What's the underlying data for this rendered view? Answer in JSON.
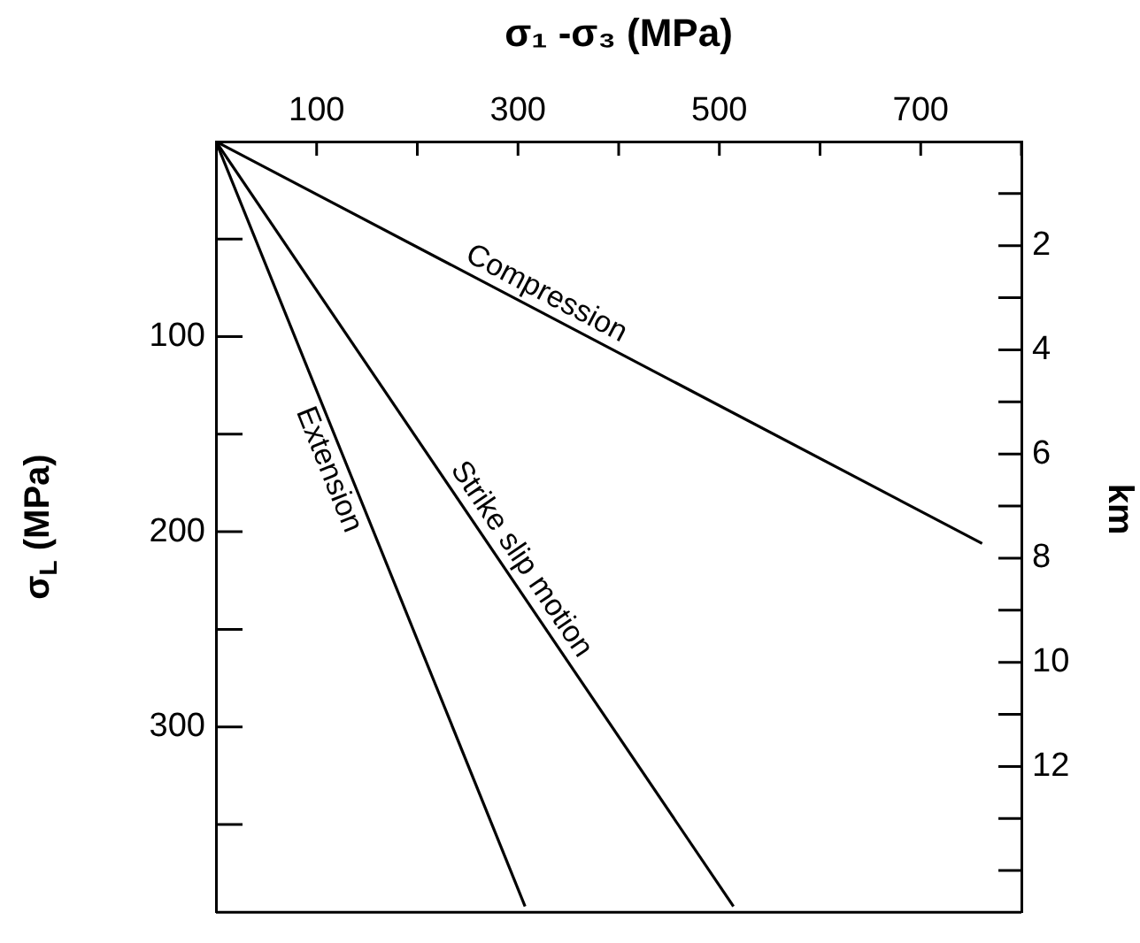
{
  "chart_data": {
    "type": "line",
    "xlabel": "σ₁ -σ₃ (MPa)",
    "ylabel": "σ$_{L}$ (MPa)",
    "y2label": "km",
    "xlim": [
      0,
      800
    ],
    "xticks": [
      100,
      {
        "value": 200,
        "label": null
      },
      300,
      {
        "value": 400,
        "label": null
      },
      500,
      {
        "value": 600,
        "label": null
      },
      700,
      {
        "value": 800,
        "label": null
      }
    ],
    "ylim": [
      395,
      0
    ],
    "yticks": [
      {
        "value": 50,
        "label": null
      },
      100,
      {
        "value": 150,
        "label": null
      },
      200,
      {
        "value": 250,
        "label": null
      },
      300,
      {
        "value": 350,
        "label": null
      }
    ],
    "y2lim": [
      14.8,
      0
    ],
    "y2ticks": [
      {
        "value": 1,
        "label": null
      },
      2,
      {
        "value": 3,
        "label": null
      },
      4,
      {
        "value": 5,
        "label": null
      },
      6,
      {
        "value": 7,
        "label": null
      },
      8,
      {
        "value": 9,
        "label": null
      },
      10,
      {
        "value": 11,
        "label": null
      },
      12,
      {
        "value": 13,
        "label": null
      },
      {
        "value": 14,
        "label": null
      }
    ],
    "grid": false,
    "legend": false,
    "marker": "none",
    "line_style": "solid",
    "series": [
      {
        "name": "Compression",
        "color": "#000000",
        "x": [
          0,
          761
        ],
        "values": [
          0,
          206
        ]
      },
      {
        "name": "Strike slip motion",
        "color": "#000000",
        "x": [
          0,
          514
        ],
        "values": [
          0,
          392
        ]
      },
      {
        "name": "Extension",
        "color": "#000000",
        "x": [
          0,
          307
        ],
        "values": [
          0,
          392
        ]
      }
    ]
  }
}
